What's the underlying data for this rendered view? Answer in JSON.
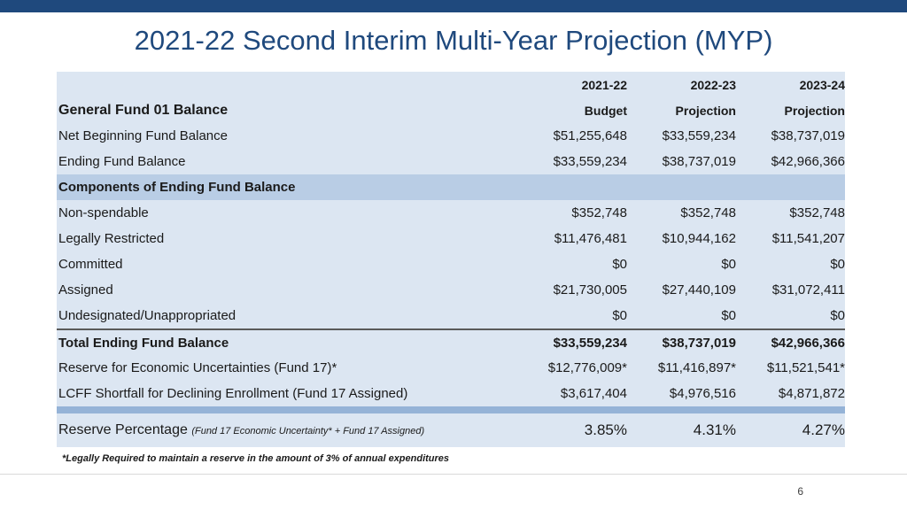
{
  "slide": {
    "title": "2021-22 Second Interim Multi-Year Projection (MYP)",
    "page_number": "6",
    "footnote": "*Legally Required to maintain a reserve  in the amount of 3% of annual expenditures"
  },
  "table": {
    "year_headers": [
      "2021-22",
      "2022-23",
      "2023-24"
    ],
    "section_label": "General Fund 01 Balance",
    "type_headers": [
      "Budget",
      "Projection",
      "Projection"
    ],
    "rows": [
      {
        "label": "Net Beginning Fund Balance",
        "values": [
          "$51,255,648",
          "$33,559,234",
          "$38,737,019"
        ]
      },
      {
        "label": "Ending Fund Balance",
        "values": [
          "$33,559,234",
          "$38,737,019",
          "$42,966,366"
        ]
      }
    ],
    "components_header": "Components of Ending Fund Balance",
    "components": [
      {
        "label": "Non-spendable",
        "values": [
          "$352,748",
          "$352,748",
          "$352,748"
        ]
      },
      {
        "label": "Legally Restricted",
        "values": [
          "$11,476,481",
          "$10,944,162",
          "$11,541,207"
        ]
      },
      {
        "label": "Committed",
        "values": [
          "$0",
          "$0",
          "$0"
        ]
      },
      {
        "label": "Assigned",
        "values": [
          "$21,730,005",
          "$27,440,109",
          "$31,072,411"
        ]
      },
      {
        "label": "Undesignated/Unappropriated",
        "values": [
          "$0",
          "$0",
          "$0"
        ]
      }
    ],
    "total": {
      "label": "Total Ending Fund Balance",
      "values": [
        "$33,559,234",
        "$38,737,019",
        "$42,966,366"
      ]
    },
    "reserves": [
      {
        "label": "Reserve for Economic Uncertainties (Fund 17)*",
        "values": [
          "$12,776,009*",
          "$11,416,897*",
          "$11,521,541*"
        ]
      },
      {
        "label": "LCFF Shortfall for Declining Enrollment (Fund 17 Assigned)",
        "values": [
          "$3,617,404",
          "$4,976,516",
          "$4,871,872"
        ]
      }
    ],
    "reserve_percentage": {
      "label": "Reserve Percentage",
      "note": "(Fund 17 Economic Uncertainty* + Fund 17 Assigned)",
      "values": [
        "3.85%",
        "4.31%",
        "4.27%"
      ]
    }
  }
}
